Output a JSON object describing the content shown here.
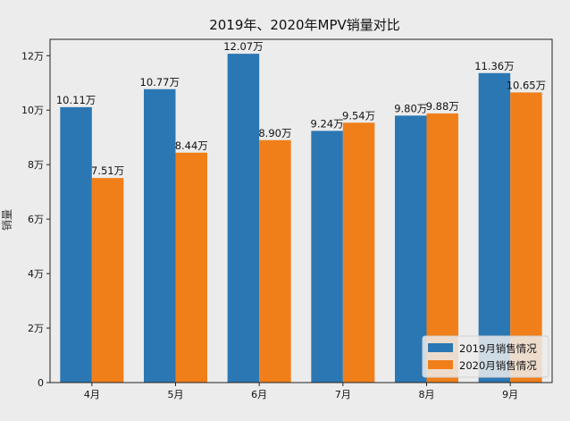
{
  "chart_data": {
    "type": "bar",
    "title": "2019年、2020年MPV销量对比",
    "xlabel": "",
    "ylabel": "销量",
    "categories": [
      "4月",
      "5月",
      "6月",
      "7月",
      "8月",
      "9月"
    ],
    "ylim": [
      0,
      12.6
    ],
    "yticks": [
      0,
      2,
      4,
      6,
      8,
      10,
      12
    ],
    "ytick_labels": [
      "0",
      "2万",
      "4万",
      "6万",
      "8万",
      "10万",
      "12万"
    ],
    "series": [
      {
        "name": "2019月销售情况",
        "color": "#2b77b3",
        "values": [
          10.11,
          10.77,
          12.07,
          9.24,
          9.8,
          11.36
        ],
        "labels": [
          "10.11万",
          "10.77万",
          "12.07万",
          "9.24万",
          "9.80万",
          "11.36万"
        ]
      },
      {
        "name": "2020月销售情况",
        "color": "#f07f1a",
        "values": [
          7.51,
          8.44,
          8.9,
          9.54,
          9.88,
          10.65
        ],
        "labels": [
          "7.51万",
          "8.44万",
          "8.90万",
          "9.54万",
          "9.88万",
          "10.65万"
        ]
      }
    ],
    "legend_position": "bottom-right"
  }
}
